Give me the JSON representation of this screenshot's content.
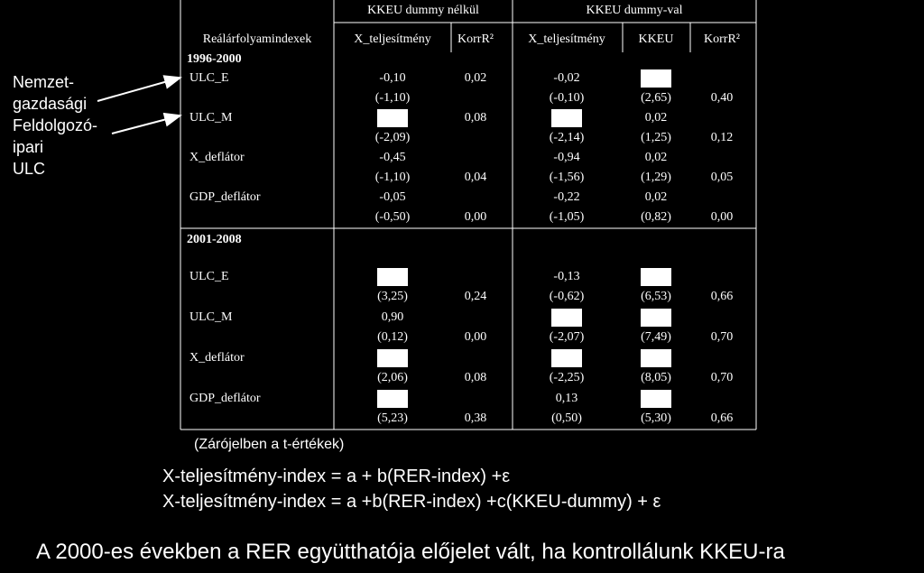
{
  "table": {
    "group_headers": [
      "KKEU dummy nélkül",
      "KKEU dummy-val"
    ],
    "column_headers": [
      "Reálárfolyamindexek",
      "X_teljesítmény",
      "KorrR²",
      "X_teljesítmény",
      "KKEU",
      "KorrR²"
    ],
    "periods": [
      {
        "label": "1996-2000",
        "rows": [
          {
            "label": "ULC_E",
            "values": [
              "-0,10",
              "0,02",
              "-0,02",
              {
                "masked": true
              },
              null
            ],
            "t_values": [
              "(-1,10)",
              null,
              "(-0,10)",
              "(2,65)",
              "0,40"
            ]
          },
          {
            "label": "ULC_M",
            "values": [
              {
                "masked": true
              },
              "0,08",
              {
                "masked": true
              },
              "0,02",
              null
            ],
            "t_values": [
              "(-2,09)",
              null,
              "(-2,14)",
              "(1,25)",
              "0,12"
            ]
          },
          {
            "label": "X_deflátor",
            "values": [
              "-0,45",
              null,
              "-0,94",
              "0,02",
              null
            ],
            "t_values": [
              "(-1,10)",
              "0,04",
              "(-1,56)",
              "(1,29)",
              "0,05"
            ]
          },
          {
            "label": "GDP_deflátor",
            "values": [
              "-0,05",
              null,
              "-0,22",
              "0,02",
              null
            ],
            "t_values": [
              "(-0,50)",
              "0,00",
              "(-1,05)",
              "(0,82)",
              "0,00"
            ]
          }
        ]
      },
      {
        "label": "2001-2008",
        "rows": [
          {
            "label": "ULC_E",
            "values": [
              {
                "masked": true
              },
              null,
              "-0,13",
              {
                "masked": true
              },
              null
            ],
            "t_values": [
              "(3,25)",
              "0,24",
              "(-0,62)",
              "(6,53)",
              "0,66"
            ]
          },
          {
            "label": "ULC_M",
            "values": [
              "0,90",
              null,
              {
                "masked": true
              },
              {
                "masked": true
              },
              null
            ],
            "t_values": [
              "(0,12)",
              "0,00",
              "(-2,07)",
              "(7,49)",
              "0,70"
            ]
          },
          {
            "label": "X_deflátor",
            "values": [
              {
                "masked": true
              },
              null,
              {
                "masked": true
              },
              {
                "masked": true
              },
              null
            ],
            "t_values": [
              "(2,06)",
              "0,08",
              "(-2,25)",
              "(8,05)",
              "0,70"
            ]
          },
          {
            "label": "GDP_deflátor",
            "values": [
              {
                "masked": true
              },
              null,
              "0,13",
              {
                "masked": true
              },
              null
            ],
            "t_values": [
              "(5,23)",
              "0,38",
              "(0,50)",
              "(5,30)",
              "0,66"
            ]
          }
        ]
      }
    ]
  },
  "annotation": [
    "Nemzet-",
    "gazdasági",
    "Feldolgozó-",
    "ipari",
    "ULC"
  ],
  "note": "(Zárójelben a t-értékek)",
  "equations": [
    "X-teljesítmény-index = a + b(RER-index) +ε",
    "X-teljesítmény-index = a +b(RER-index) +c(KKEU-dummy) + ε"
  ],
  "conclusion": "A 2000-es években a RER együtthatója előjelet vált, ha kontrollálunk KKEU-ra"
}
